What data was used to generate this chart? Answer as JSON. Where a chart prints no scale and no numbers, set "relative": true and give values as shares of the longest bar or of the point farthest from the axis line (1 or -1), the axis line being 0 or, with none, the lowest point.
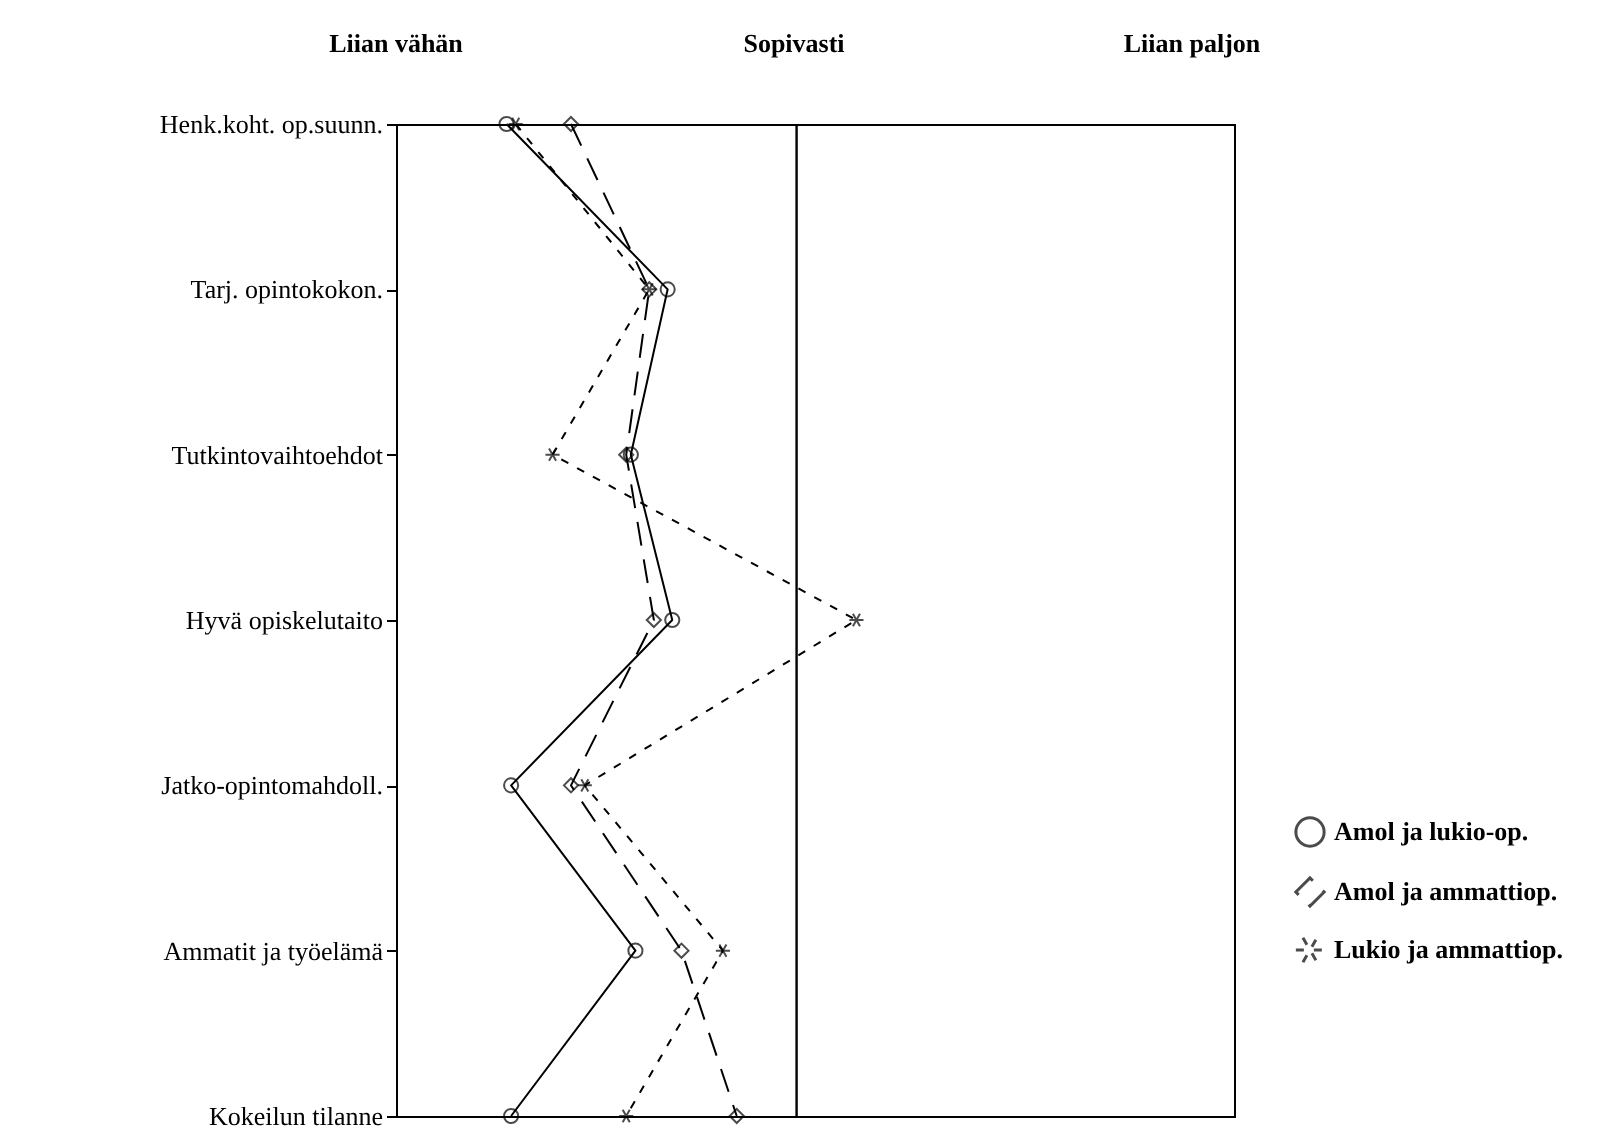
{
  "chart_data": {
    "type": "line",
    "categories": [
      "Henk.koht. op.suunn.",
      "Tarj. opintokokon.",
      "Tutkintovaihtoehdot",
      "Hyvä opiskelutaito",
      "Jatko-opintomahdoll.",
      "Ammatit ja työelämä",
      "Kokeilun tilanne"
    ],
    "orientation": "horizontal",
    "relative": true,
    "annotations": [
      "Liian vähän",
      "Sopivasti",
      "Liian paljon"
    ],
    "series": [
      {
        "name": "Amol ja lukio-op.",
        "color": "#000000",
        "line_style": "solid",
        "marker": "circle",
        "values": [
          0.24,
          0.59,
          0.51,
          0.6,
          0.25,
          0.52,
          0.25
        ]
      },
      {
        "name": "Amol ja ammattiop.",
        "color": "#000000",
        "line_style": "dashed",
        "marker": "diamond",
        "values": [
          0.38,
          0.55,
          0.5,
          0.56,
          0.38,
          0.62,
          0.74
        ]
      },
      {
        "name": "Lukio ja ammattiop.",
        "color": "#000000",
        "line_style": "dotted",
        "marker": "cross",
        "values": [
          0.26,
          0.55,
          0.34,
          1,
          0.41,
          0.71,
          0.5
        ]
      }
    ],
    "ref_lines": [
      {
        "axis": "x",
        "value": 0.87,
        "color": "#000000"
      }
    ],
    "legend": "bottom right",
    "grid": false
  }
}
